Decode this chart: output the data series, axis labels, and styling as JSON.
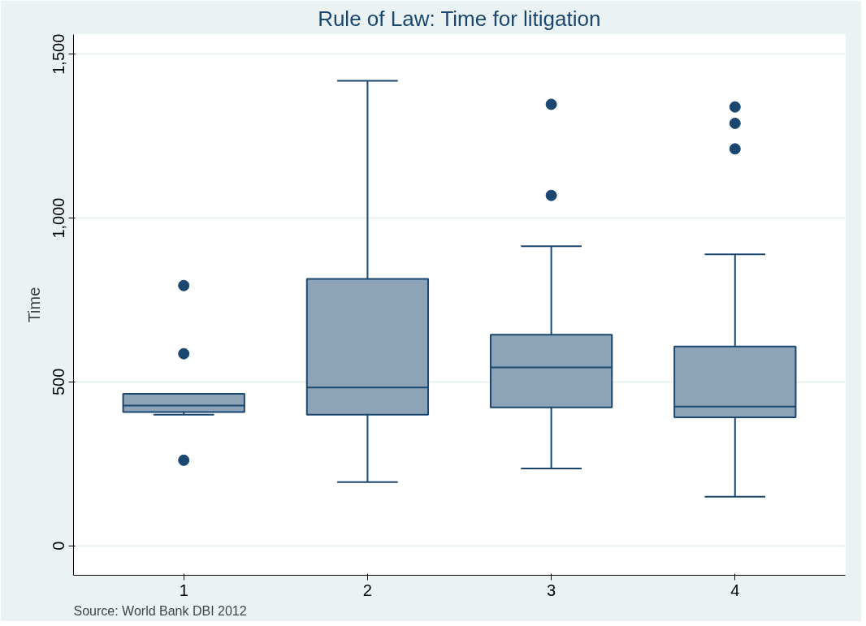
{
  "chart_data": {
    "type": "box",
    "title": "Rule of Law: Time for litigation",
    "ylabel": "Time",
    "categories": [
      "1",
      "2",
      "3",
      "4"
    ],
    "boxes": [
      {
        "low": 400,
        "q1": 408,
        "median": 428,
        "q3": 464,
        "high": 464,
        "outliers": [
          794,
          586,
          261
        ]
      },
      {
        "low": 194,
        "q1": 400,
        "median": 483,
        "q3": 814,
        "high": 1419
      },
      {
        "low": 236,
        "q1": 422,
        "median": 544,
        "q3": 644,
        "high": 914,
        "outliers": [
          1347,
          1069
        ]
      },
      {
        "low": 150,
        "q1": 392,
        "median": 425,
        "q3": 608,
        "high": 889,
        "outliers": [
          1339,
          1289,
          1211
        ]
      }
    ],
    "color": "#8da4b8",
    "ylim": [
      -90,
      1560
    ],
    "yticks": [
      0,
      500,
      {
        "value": 1000,
        "label": "1,000"
      },
      {
        "value": 1500,
        "label": "1,500"
      }
    ],
    "grid": "y",
    "marker": "circle",
    "annotations": [
      "Source: World Bank DBI 2012"
    ]
  }
}
